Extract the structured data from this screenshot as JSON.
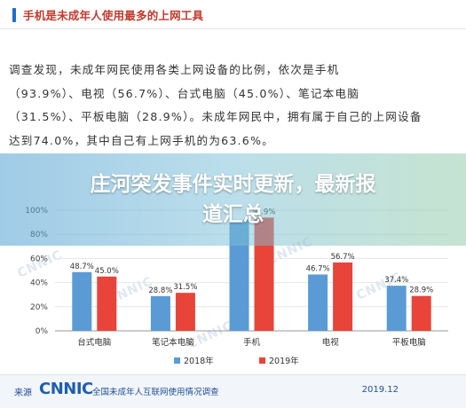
{
  "header": {
    "title": "手机是未成年人使用最多的上网工具"
  },
  "paragraph": {
    "lines": [
      "调查发现，未成年网民使用各类上网设备的比例，依次是手机",
      "（93.9%）、电视（56.7%）、台式电脑（45.0%）、笔记本电脑",
      "（31.5%）、平板电脑（28.9%）。未成年网民中，拥有属于自己的上网设备",
      "达到74.0%，其中自己有上网手机的为63.6%。"
    ]
  },
  "banner": {
    "line1": "庄河突发事件实时更新，最新报",
    "line2": "道汇总"
  },
  "watermark": {
    "text": "CNNIC"
  },
  "chart_data": {
    "type": "bar",
    "categories": [
      "台式电脑",
      "笔记本电脑",
      "手机",
      "电视",
      "平板电脑"
    ],
    "series": [
      {
        "name": "2018年",
        "values": [
          48.7,
          28.8,
          92.0,
          46.7,
          37.4
        ],
        "labels": [
          "48.7%",
          "28.8%",
          "",
          "46.7%",
          "37.4%"
        ]
      },
      {
        "name": "2019年",
        "values": [
          45.0,
          31.5,
          93.9,
          56.7,
          28.9
        ],
        "labels": [
          "45.0%",
          "31.5%",
          "9_.9%",
          "56.7%",
          "28.9%"
        ]
      }
    ],
    "ylim": [
      0,
      100
    ],
    "y_ticks": [
      "0%",
      "20%",
      "40%",
      "60%",
      "80%",
      "100%"
    ],
    "legend_position": "bottom-center",
    "colors": {
      "2018年": "#5b9bd5",
      "2019年": "#e8443a"
    }
  },
  "footer": {
    "source_label": "来源",
    "logo_text": "CNNIC",
    "report_title": "全国未成年人互联网使用情况调查",
    "date": "2019.12"
  }
}
